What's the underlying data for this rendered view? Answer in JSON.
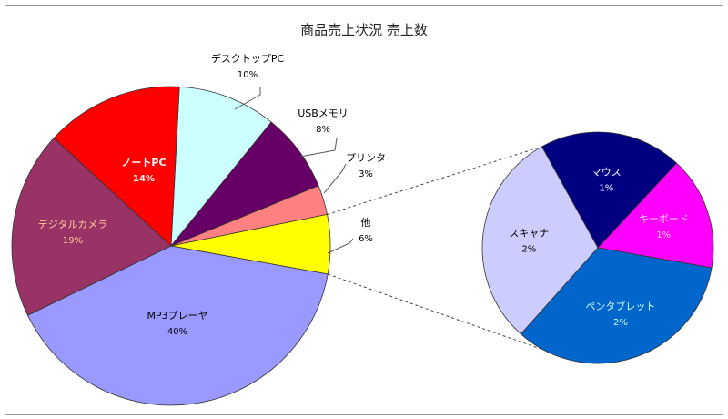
{
  "chart_data": {
    "type": "pie",
    "subtype": "pie-of-pie",
    "title": "商品売上状況 売上数",
    "main_pie": [
      {
        "label": "デスクトップPC",
        "pct_label": "10%",
        "value": 10,
        "color": "#ccffff",
        "label_color": "#000000"
      },
      {
        "label": "USBメモリ",
        "pct_label": "8%",
        "value": 8,
        "color": "#660066",
        "label_color": "#000000"
      },
      {
        "label": "プリンタ",
        "pct_label": "3%",
        "value": 3,
        "color": "#ff8080",
        "label_color": "#000000"
      },
      {
        "label": "他",
        "pct_label": "6%",
        "value": 6,
        "color": "#ffff00",
        "label_color": "#000000"
      },
      {
        "label": "MP3プレーヤ",
        "pct_label": "40%",
        "value": 40,
        "color": "#9999ff",
        "label_color": "#000000"
      },
      {
        "label": "デジタルカメラ",
        "pct_label": "19%",
        "value": 19,
        "color": "#993366",
        "label_color": "#ffcc99"
      },
      {
        "label": "ノートPC",
        "pct_label": "14%",
        "value": 14,
        "color": "#ff0000",
        "label_color": "#ffffff"
      }
    ],
    "secondary_pie": [
      {
        "label": "マウス",
        "pct_label": "1%",
        "value": 1.2,
        "color": "#000080",
        "label_color": "#ffffff"
      },
      {
        "label": "キーボード",
        "pct_label": "1%",
        "value": 0.95,
        "color": "#ff00ff",
        "label_color": "#ffccff"
      },
      {
        "label": "ペンタブレット",
        "pct_label": "2%",
        "value": 2.03,
        "color": "#0066cc",
        "label_color": "#ccffff"
      },
      {
        "label": "スキャナ",
        "pct_label": "2%",
        "value": 1.82,
        "color": "#ccccff",
        "label_color": "#000000"
      }
    ],
    "legend": "none"
  }
}
